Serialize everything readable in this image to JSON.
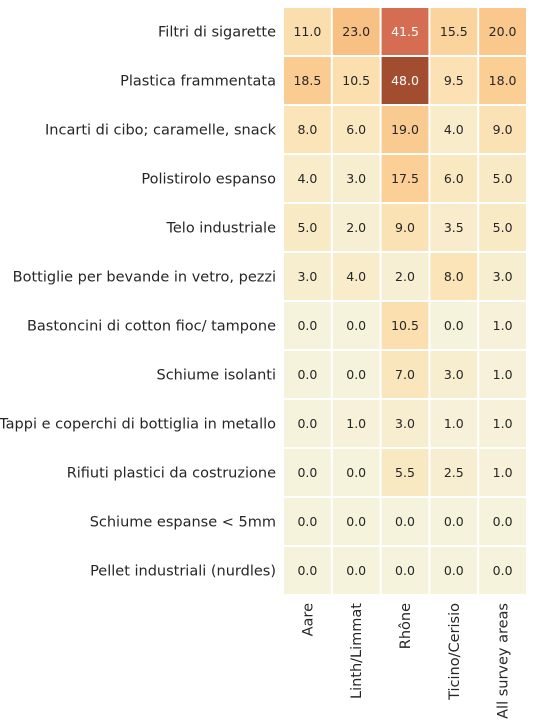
{
  "chart_data": {
    "type": "heatmap",
    "title": "",
    "xlabel": "",
    "ylabel": "",
    "columns": [
      "Aare",
      "Linth/Limmat",
      "Rhône",
      "Ticino/Cerisio",
      "All survey areas"
    ],
    "rows": [
      "Filtri di sigarette",
      "Plastica frammentata",
      "Incarti di cibo; caramelle, snack",
      "Polistirolo espanso",
      "Telo industriale",
      "Bottiglie per bevande in vetro, pezzi",
      "Bastoncini di cotton fioc/ tampone",
      "Schiume isolanti",
      "Tappi e coperchi di bottiglia in metallo",
      "Rifiuti plastici da costruzione",
      "Schiume espanse < 5mm",
      "Pellet industriali (nurdles)"
    ],
    "values": [
      [
        11.0,
        23.0,
        41.5,
        15.5,
        20.0
      ],
      [
        18.5,
        10.5,
        48.0,
        9.5,
        18.0
      ],
      [
        8.0,
        6.0,
        19.0,
        4.0,
        9.0
      ],
      [
        4.0,
        3.0,
        17.5,
        6.0,
        5.0
      ],
      [
        5.0,
        2.0,
        9.0,
        3.5,
        5.0
      ],
      [
        3.0,
        4.0,
        2.0,
        8.0,
        3.0
      ],
      [
        0.0,
        0.0,
        10.5,
        0.0,
        1.0
      ],
      [
        0.0,
        0.0,
        7.0,
        3.0,
        1.0
      ],
      [
        0.0,
        1.0,
        3.0,
        1.0,
        1.0
      ],
      [
        0.0,
        0.0,
        5.5,
        2.5,
        1.0
      ],
      [
        0.0,
        0.0,
        0.0,
        0.0,
        0.0
      ],
      [
        0.0,
        0.0,
        0.0,
        0.0,
        0.0
      ]
    ],
    "value_format": "one-decimal",
    "color_scale": {
      "min": 0,
      "max": 48,
      "stops": [
        "#f5f3dc",
        "#fbe4b8",
        "#fbd39b",
        "#f9bd7f",
        "#f2a26b",
        "#df7459",
        "#a34d30"
      ]
    },
    "cell_gap_color": "#ffffff",
    "grid": false,
    "legend": "none"
  }
}
